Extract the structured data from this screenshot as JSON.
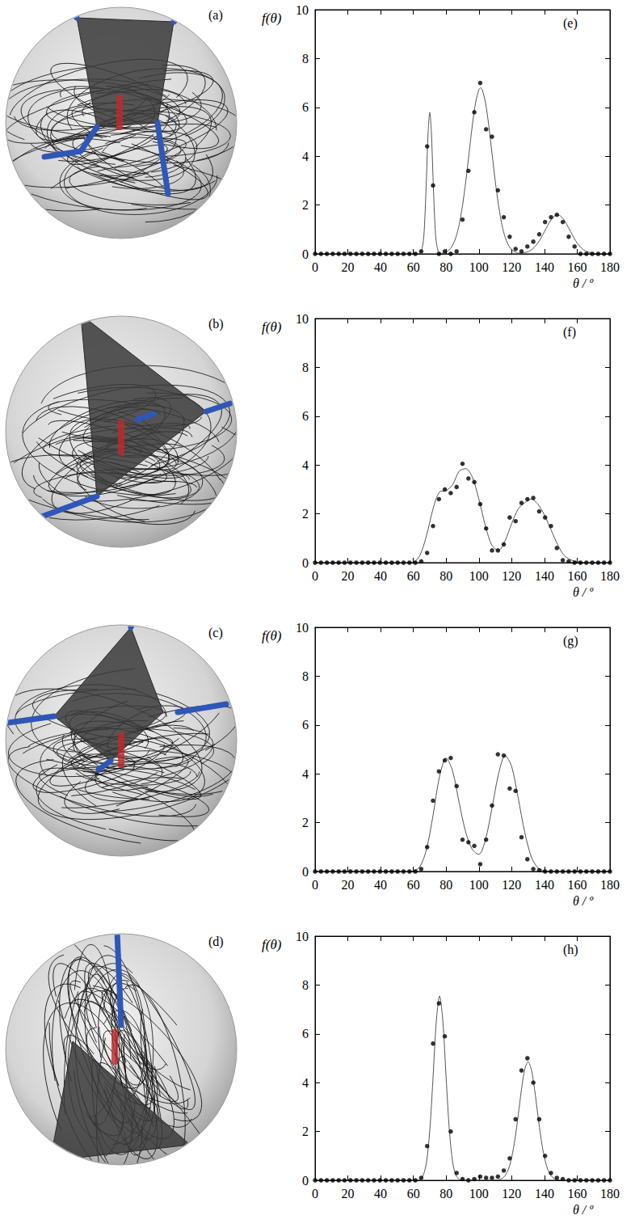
{
  "images": [
    {
      "label": "(a)"
    },
    {
      "label": "(b)"
    },
    {
      "label": "(c)"
    },
    {
      "label": "(d)"
    }
  ],
  "chart_data": [
    {
      "type": "scatter",
      "title": "(e)",
      "xlabel": "θ / º",
      "ylabel": "f(θ)",
      "xlim": [
        0,
        180
      ],
      "xticks": [
        0,
        20,
        40,
        60,
        80,
        100,
        120,
        140,
        160,
        180
      ],
      "ylim": [
        0,
        10
      ],
      "yticks": [
        0,
        2,
        4,
        6,
        8,
        10
      ],
      "grid": false,
      "series": [
        {
          "type": "scatter",
          "marker": "circle",
          "color": "#000000",
          "x": [
            0,
            3.6,
            7.2,
            10.8,
            14.4,
            18,
            21.6,
            25.2,
            28.8,
            32.4,
            36,
            39.6,
            43.2,
            46.8,
            50.4,
            54,
            57.6,
            61.2,
            64.8,
            68.4,
            72,
            75.6,
            79.2,
            82.8,
            86.4,
            90,
            93.6,
            97.2,
            100.8,
            104.4,
            108,
            111.6,
            115.2,
            118.8,
            122.4,
            126,
            129.6,
            133.2,
            136.8,
            140.4,
            144,
            147.6,
            151.2,
            154.8,
            158.4,
            162,
            165.6,
            169.2,
            172.8,
            176.4,
            180
          ],
          "values": [
            0,
            0,
            0,
            0,
            0,
            0,
            0,
            0,
            0,
            0,
            0,
            0,
            0,
            0,
            0,
            0,
            0,
            0,
            0.1,
            4.4,
            2.8,
            0,
            0.1,
            0,
            0.1,
            1.4,
            3.4,
            5.8,
            7.0,
            5.1,
            4.8,
            2.6,
            1.5,
            0.7,
            0.2,
            0.1,
            0.3,
            0.5,
            0.8,
            1.3,
            1.5,
            1.6,
            1.3,
            0.7,
            0.3,
            0,
            0,
            0,
            0,
            0,
            0
          ]
        },
        {
          "type": "line",
          "line_style": "solid",
          "color": "#555555",
          "x": [
            0,
            60,
            64,
            66,
            67,
            68,
            69,
            70,
            71,
            72,
            73,
            74,
            76,
            78,
            80,
            82,
            84,
            86,
            88,
            90,
            92,
            94,
            96,
            98,
            100,
            101,
            102,
            104,
            106,
            108,
            110,
            112,
            114,
            116,
            118,
            120,
            122,
            124,
            126,
            128,
            130,
            132,
            134,
            136,
            138,
            140,
            142,
            144,
            146,
            148,
            150,
            152,
            154,
            156,
            158,
            160,
            162,
            164,
            166,
            168,
            170,
            180
          ],
          "values": [
            0,
            0,
            0.02,
            0.49,
            1.45,
            3.13,
            4.97,
            5.8,
            4.97,
            3.13,
            1.45,
            0.49,
            0.02,
            0.03,
            0.08,
            0.17,
            0.36,
            0.68,
            1.21,
            1.98,
            2.97,
            4.12,
            5.27,
            6.2,
            6.73,
            6.8,
            6.73,
            6.2,
            5.27,
            4.12,
            2.97,
            1.98,
            1.21,
            0.68,
            0.36,
            0.17,
            0.08,
            0.03,
            0.03,
            0.05,
            0.09,
            0.16,
            0.28,
            0.44,
            0.66,
            0.91,
            1.16,
            1.39,
            1.54,
            1.6,
            1.54,
            1.39,
            1.16,
            0.91,
            0.66,
            0.44,
            0.28,
            0.16,
            0.09,
            0.05,
            0.02,
            0
          ]
        }
      ]
    },
    {
      "type": "scatter",
      "title": "(f)",
      "xlabel": "θ / º",
      "ylabel": "f(θ)",
      "xlim": [
        0,
        180
      ],
      "xticks": [
        0,
        20,
        40,
        60,
        80,
        100,
        120,
        140,
        160,
        180
      ],
      "ylim": [
        0,
        10
      ],
      "yticks": [
        0,
        2,
        4,
        6,
        8,
        10
      ],
      "grid": false,
      "series": [
        {
          "type": "scatter",
          "marker": "circle",
          "color": "#000000",
          "x": [
            0,
            3.6,
            7.2,
            10.8,
            14.4,
            18,
            21.6,
            25.2,
            28.8,
            32.4,
            36,
            39.6,
            43.2,
            46.8,
            50.4,
            54,
            57.6,
            61.2,
            64.8,
            68.4,
            72,
            75.6,
            79.2,
            82.8,
            86.4,
            90,
            93.6,
            97.2,
            100.8,
            104.4,
            108,
            111.6,
            115.2,
            118.8,
            122.4,
            126,
            129.6,
            133.2,
            136.8,
            140.4,
            144,
            147.6,
            151.2,
            154.8,
            158.4,
            162,
            165.6,
            169.2,
            172.8,
            176.4,
            180
          ],
          "values": [
            0,
            0,
            0,
            0,
            0,
            0,
            0,
            0,
            0,
            0,
            0,
            0,
            0,
            0,
            0,
            0,
            0,
            0,
            0.05,
            0.4,
            1.5,
            2.6,
            3.0,
            2.85,
            3.1,
            4.05,
            3.45,
            3.3,
            2.4,
            1.4,
            0.5,
            0.5,
            0.75,
            1.85,
            1.7,
            2.45,
            2.6,
            2.65,
            2.1,
            1.85,
            1.5,
            0.6,
            0.1,
            0.05,
            0,
            0,
            0,
            0,
            0,
            0,
            0
          ]
        },
        {
          "type": "line",
          "line_style": "solid",
          "color": "#555555",
          "x": [
            0,
            56,
            60,
            64,
            68,
            72,
            76,
            80,
            84,
            88,
            92,
            96,
            100,
            104,
            108,
            112,
            116,
            120,
            124,
            128,
            132,
            136,
            140,
            144,
            148,
            152,
            156,
            160,
            164,
            168,
            172,
            180
          ],
          "values": [
            0,
            0,
            0.02,
            0.3,
            1.1,
            2.2,
            2.9,
            2.95,
            3.2,
            3.75,
            3.85,
            3.5,
            2.6,
            1.5,
            0.7,
            0.5,
            0.9,
            1.6,
            2.2,
            2.45,
            2.6,
            2.4,
            1.95,
            1.35,
            0.75,
            0.3,
            0.12,
            0.04,
            0.01,
            0,
            0,
            0
          ]
        }
      ]
    },
    {
      "type": "scatter",
      "title": "(g)",
      "xlabel": "θ / º",
      "ylabel": "f(θ)",
      "xlim": [
        0,
        180
      ],
      "xticks": [
        0,
        20,
        40,
        60,
        80,
        100,
        120,
        140,
        160,
        180
      ],
      "ylim": [
        0,
        10
      ],
      "yticks": [
        0,
        2,
        4,
        6,
        8,
        10
      ],
      "grid": false,
      "series": [
        {
          "type": "scatter",
          "marker": "circle",
          "color": "#000000",
          "x": [
            0,
            3.6,
            7.2,
            10.8,
            14.4,
            18,
            21.6,
            25.2,
            28.8,
            32.4,
            36,
            39.6,
            43.2,
            46.8,
            50.4,
            54,
            57.6,
            61.2,
            64.8,
            68.4,
            72,
            75.6,
            79.2,
            82.8,
            86.4,
            90,
            93.6,
            97.2,
            100.8,
            104.4,
            108,
            111.6,
            115.2,
            118.8,
            122.4,
            126,
            129.6,
            133.2,
            136.8,
            140.4,
            144,
            147.6,
            151.2,
            154.8,
            158.4,
            162,
            165.6,
            169.2,
            172.8,
            176.4,
            180
          ],
          "values": [
            0,
            0,
            0,
            0,
            0,
            0,
            0,
            0,
            0,
            0,
            0,
            0,
            0,
            0,
            0,
            0,
            0,
            0,
            0.1,
            1.0,
            2.9,
            4.1,
            4.55,
            4.65,
            3.5,
            1.3,
            1.2,
            1.05,
            0.3,
            1.3,
            2.7,
            4.8,
            4.75,
            3.4,
            3.3,
            1.4,
            0.5,
            0.1,
            0.05,
            0,
            0,
            0,
            0,
            0,
            0,
            0,
            0,
            0,
            0,
            0,
            0
          ]
        },
        {
          "type": "line",
          "line_style": "solid",
          "color": "#555555",
          "x": [
            0,
            56,
            60,
            64,
            68,
            72,
            76,
            80,
            84,
            88,
            92,
            96,
            100,
            104,
            108,
            112,
            116,
            120,
            124,
            128,
            132,
            136,
            140,
            144,
            148,
            152,
            156,
            160,
            164,
            168,
            172,
            180
          ],
          "values": [
            0,
            0,
            0.02,
            0.2,
            0.9,
            2.3,
            3.9,
            4.65,
            4.1,
            2.8,
            1.6,
            0.9,
            0.7,
            1.3,
            2.6,
            4.0,
            4.75,
            4.3,
            3.0,
            1.6,
            0.6,
            0.15,
            0.03,
            0,
            0,
            0,
            0,
            0,
            0,
            0,
            0,
            0
          ]
        }
      ]
    },
    {
      "type": "scatter",
      "title": "(h)",
      "xlabel": "θ / º",
      "ylabel": "f(θ)",
      "xlim": [
        0,
        180
      ],
      "xticks": [
        0,
        20,
        40,
        60,
        80,
        100,
        120,
        140,
        160,
        180
      ],
      "ylim": [
        0,
        10
      ],
      "yticks": [
        0,
        2,
        4,
        6,
        8,
        10
      ],
      "grid": false,
      "series": [
        {
          "type": "scatter",
          "marker": "circle",
          "color": "#000000",
          "x": [
            0,
            3.6,
            7.2,
            10.8,
            14.4,
            18,
            21.6,
            25.2,
            28.8,
            32.4,
            36,
            39.6,
            43.2,
            46.8,
            50.4,
            54,
            57.6,
            61.2,
            64.8,
            68.4,
            72,
            75.6,
            79.2,
            82.8,
            86.4,
            90,
            93.6,
            97.2,
            100.8,
            104.4,
            108,
            111.6,
            115.2,
            118.8,
            122.4,
            126,
            129.6,
            133.2,
            136.8,
            140.4,
            144,
            147.6,
            151.2,
            154.8,
            158.4,
            162,
            165.6,
            169.2,
            172.8,
            176.4,
            180
          ],
          "values": [
            0,
            0,
            0,
            0,
            0,
            0,
            0,
            0,
            0,
            0,
            0,
            0,
            0,
            0,
            0,
            0,
            0,
            0,
            0.1,
            1.4,
            5.6,
            7.25,
            5.9,
            2.0,
            0.3,
            0.05,
            0,
            0.05,
            0.15,
            0.1,
            0.1,
            0.15,
            0.4,
            0.9,
            2.5,
            4.5,
            5.0,
            4.0,
            2.5,
            1.0,
            0.3,
            0.1,
            0.05,
            0,
            0,
            0,
            0,
            0,
            0,
            0,
            0
          ]
        },
        {
          "type": "line",
          "line_style": "solid",
          "color": "#555555",
          "x": [
            0,
            60,
            62,
            64,
            66,
            68,
            70,
            72,
            74,
            76,
            78,
            80,
            82,
            84,
            86,
            88,
            90,
            92,
            94,
            96,
            98,
            100,
            102,
            104,
            106,
            108,
            110,
            112,
            114,
            116,
            118,
            120,
            122,
            124,
            126,
            128,
            130,
            132,
            134,
            136,
            138,
            140,
            142,
            144,
            146,
            148,
            150,
            152,
            160,
            170,
            180
          ],
          "values": [
            0,
            0,
            0,
            0.04,
            0.2,
            0.73,
            2.03,
            4.2,
            6.52,
            7.55,
            6.52,
            4.2,
            2.03,
            0.73,
            0.2,
            0.04,
            0,
            0,
            0,
            0,
            0,
            0,
            0,
            0,
            0,
            0,
            0.01,
            0.02,
            0.07,
            0.19,
            0.45,
            0.93,
            1.68,
            2.67,
            3.72,
            4.54,
            4.85,
            4.54,
            3.72,
            2.67,
            1.68,
            0.93,
            0.45,
            0.19,
            0.07,
            0.02,
            0.01,
            0,
            0,
            0,
            0
          ]
        }
      ]
    }
  ]
}
